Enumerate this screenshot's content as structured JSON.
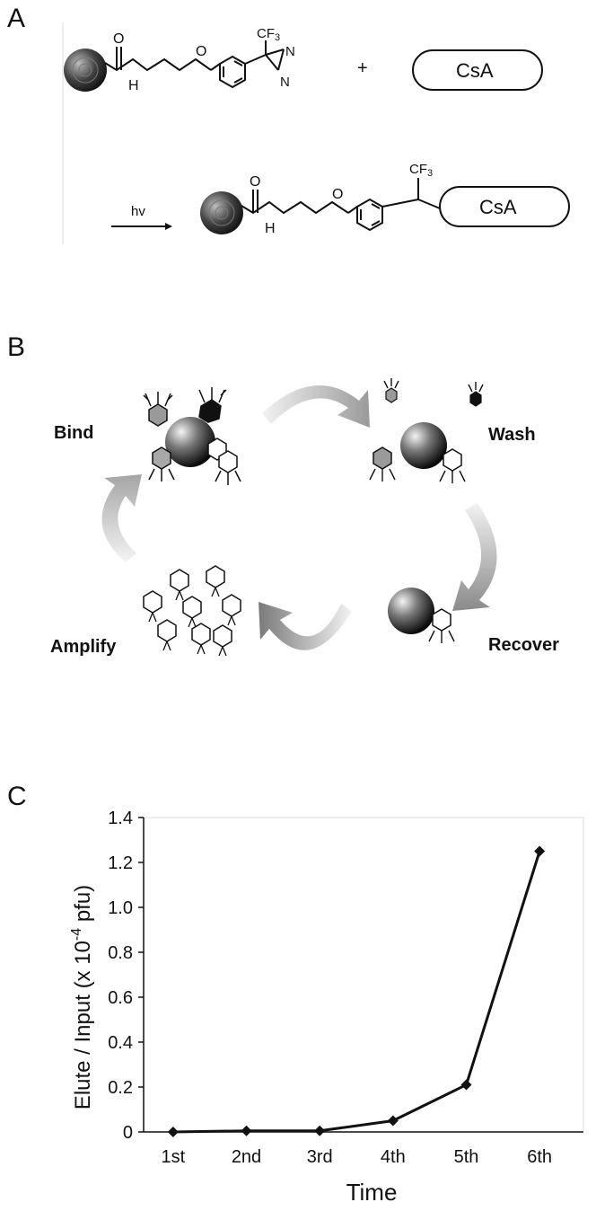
{
  "panels": {
    "a": {
      "letter": "A"
    },
    "b": {
      "letter": "B"
    },
    "c": {
      "letter": "C"
    }
  },
  "panel_a": {
    "cf3": "CF",
    "cf3_sub": "3",
    "o": "O",
    "h": "H",
    "n": "N",
    "n2": "N",
    "plus": "+",
    "csa": "CsA",
    "hv": "hv"
  },
  "panel_b": {
    "bind": "Bind",
    "wash": "Wash",
    "recover": "Recover",
    "amplify": "Amplify"
  },
  "chart_data": {
    "type": "line",
    "categories": [
      "1st",
      "2nd",
      "3rd",
      "4th",
      "5th",
      "6th"
    ],
    "series": [
      {
        "values": [
          0.0,
          0.005,
          0.005,
          0.05,
          0.21,
          1.25
        ]
      }
    ],
    "xlabel": "Time",
    "ylabel_prefix": "Elute / Input (x 10",
    "ylabel_exp": "-4",
    "ylabel_suffix": " pfu)",
    "ylim": [
      0,
      1.4
    ],
    "yticks": [
      "0",
      "0.2",
      "0.4",
      "0.6",
      "0.8",
      "1.0",
      "1.2",
      "1.4"
    ],
    "grid": false,
    "marker": "diamond",
    "color": "#111111"
  }
}
